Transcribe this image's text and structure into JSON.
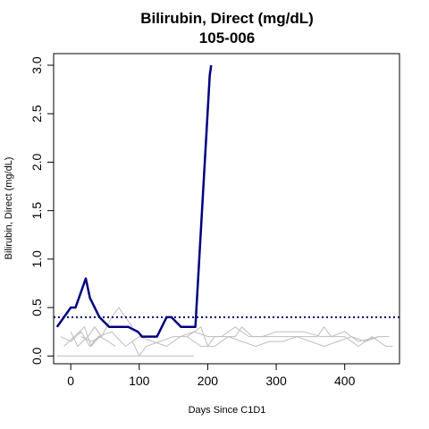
{
  "chart_data": {
    "type": "line",
    "title": "Bilirubin, Direct (mg/dL)",
    "subtitle": "105-006",
    "xlabel": "Days Since C1D1",
    "ylabel": "Bilirubin, Direct (mg/dL)",
    "xlim": [
      -25,
      480
    ],
    "ylim": [
      -0.08,
      3.12
    ],
    "xticks": [
      0,
      100,
      200,
      300,
      400
    ],
    "yticks": [
      0.0,
      0.5,
      1.0,
      1.5,
      2.0,
      2.5,
      3.0
    ],
    "reference_line": {
      "y": 0.4,
      "style": "dotted",
      "color": "#00007f"
    },
    "highlight_series": {
      "color": "#00007f",
      "x": [
        -20,
        0,
        7,
        22,
        28,
        42,
        56,
        84,
        98,
        104,
        112,
        126,
        140,
        147,
        161,
        175,
        182,
        203,
        205
      ],
      "y": [
        0.3,
        0.5,
        0.5,
        0.8,
        0.6,
        0.4,
        0.3,
        0.3,
        0.25,
        0.2,
        0.2,
        0.2,
        0.4,
        0.4,
        0.3,
        0.3,
        0.3,
        2.9,
        3.0
      ]
    },
    "background_series": [
      {
        "x": [
          -20,
          180
        ],
        "y": [
          0.0,
          0.0
        ]
      },
      {
        "x": [
          -15,
          0,
          15,
          28,
          40
        ],
        "y": [
          0.2,
          0.15,
          0.25,
          0.1,
          0.2
        ]
      },
      {
        "x": [
          -10,
          5,
          20,
          30,
          42,
          55,
          65
        ],
        "y": [
          0.1,
          0.2,
          0.3,
          0.1,
          0.2,
          0.15,
          0.1
        ]
      },
      {
        "x": [
          0,
          10,
          25,
          35,
          45
        ],
        "y": [
          0.25,
          0.1,
          0.2,
          0.3,
          0.2
        ]
      },
      {
        "x": [
          15,
          30,
          45,
          60,
          70,
          80,
          90
        ],
        "y": [
          0.2,
          0.15,
          0.2,
          0.4,
          0.5,
          0.4,
          0.3
        ]
      },
      {
        "x": [
          40,
          60,
          80,
          100,
          120,
          140,
          160,
          180,
          200,
          220,
          240,
          260,
          280,
          300,
          330,
          360,
          370,
          380,
          400,
          420,
          440,
          460,
          470
        ],
        "y": [
          0.2,
          0.25,
          0.1,
          0.2,
          0.15,
          0.1,
          0.2,
          0.25,
          0.2,
          0.2,
          0.3,
          0.2,
          0.2,
          0.2,
          0.2,
          0.2,
          0.3,
          0.2,
          0.2,
          0.1,
          0.2,
          0.1,
          0.1
        ]
      },
      {
        "x": [
          90,
          100,
          110,
          130,
          150,
          170,
          190,
          210,
          230,
          250,
          270,
          290,
          310,
          330,
          350,
          370,
          390,
          410,
          430,
          450
        ],
        "y": [
          0.15,
          0.0,
          0.1,
          0.15,
          0.2,
          0.2,
          0.1,
          0.1,
          0.2,
          0.15,
          0.1,
          0.15,
          0.15,
          0.2,
          0.15,
          0.1,
          0.15,
          0.2,
          0.15,
          0.2
        ]
      },
      {
        "x": [
          170,
          190,
          200,
          210,
          240,
          250,
          265,
          280,
          300,
          340,
          365,
          380,
          400,
          420,
          450,
          465
        ],
        "y": [
          0.2,
          0.3,
          0.1,
          0.2,
          0.2,
          0.3,
          0.2,
          0.2,
          0.25,
          0.25,
          0.2,
          0.2,
          0.25,
          0.15,
          0.2,
          0.2
        ]
      }
    ]
  }
}
